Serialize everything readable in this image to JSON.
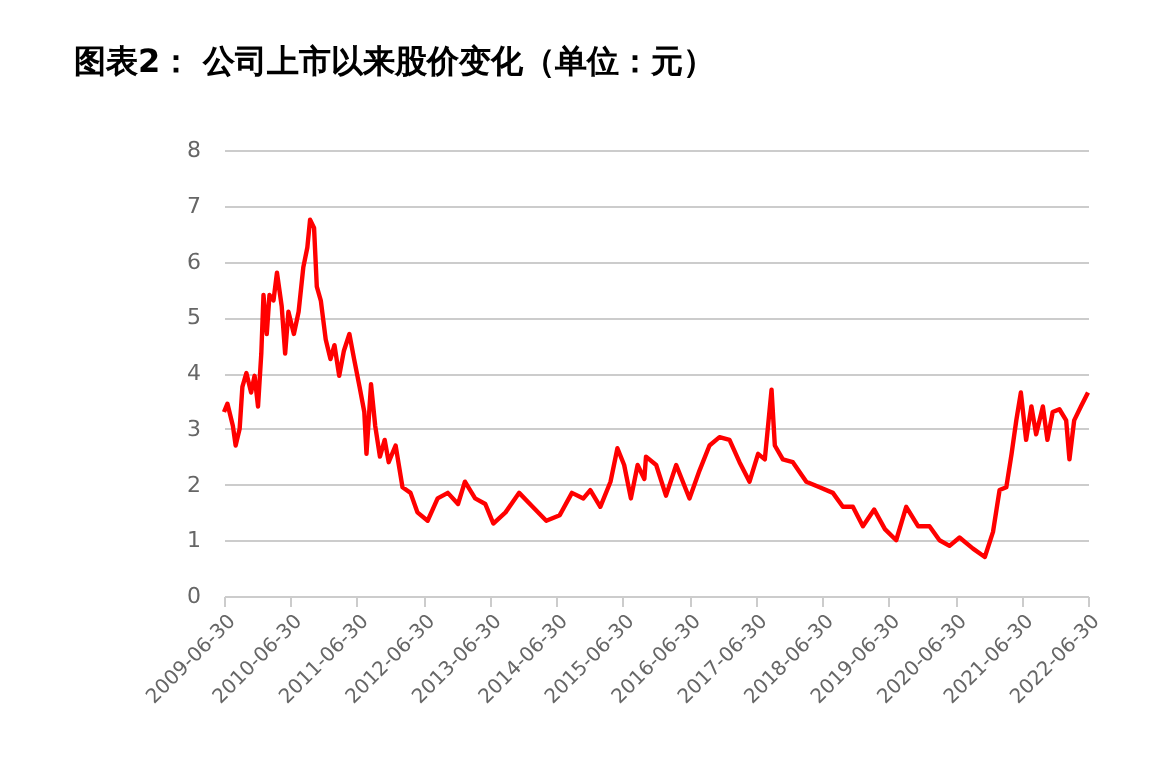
{
  "chart_data": {
    "type": "line",
    "title": "图表2：  公司上市以来股价变化（单位：元）",
    "x": [
      "2009-06-30",
      "2009-07-19",
      "2009-08-18",
      "2009-09-02",
      "2009-09-24",
      "2009-10-09",
      "2009-10-31",
      "2009-11-26",
      "2009-12-15",
      "2010-01-03",
      "2010-01-21",
      "2010-02-02",
      "2010-02-20",
      "2010-03-07",
      "2010-03-29",
      "2010-04-17",
      "2010-05-13",
      "2010-06-01",
      "2010-06-19",
      "2010-07-19",
      "2010-08-14",
      "2010-09-09",
      "2010-10-01",
      "2010-10-16",
      "2010-11-07",
      "2010-11-22",
      "2010-12-14",
      "2011-01-10",
      "2011-02-05",
      "2011-02-27",
      "2011-03-25",
      "2011-04-20",
      "2011-05-20",
      "2011-06-15",
      "2011-07-15",
      "2011-08-10",
      "2011-08-22",
      "2011-09-16",
      "2011-10-09",
      "2011-11-04",
      "2011-11-30",
      "2011-12-22",
      "2012-01-29",
      "2012-03-07",
      "2012-04-20",
      "2012-05-28",
      "2012-07-23",
      "2012-09-16",
      "2012-11-11",
      "2013-01-06",
      "2013-02-13",
      "2013-04-10",
      "2013-06-05",
      "2013-07-19",
      "2013-09-24",
      "2013-12-08",
      "2014-02-20",
      "2014-05-06",
      "2014-07-19",
      "2014-09-24",
      "2014-11-26",
      "2015-01-03",
      "2015-02-27",
      "2015-04-24",
      "2015-06-01",
      "2015-07-08",
      "2015-08-14",
      "2015-09-20",
      "2015-10-27",
      "2015-11-05",
      "2015-12-31",
      "2016-02-23",
      "2016-04-19",
      "2016-07-01",
      "2016-08-25",
      "2016-10-19",
      "2016-12-13",
      "2017-02-06",
      "2017-04-02",
      "2017-05-27",
      "2017-07-13",
      "2017-08-19",
      "2017-09-25",
      "2017-10-13",
      "2017-11-26",
      "2018-01-20",
      "2018-04-04",
      "2018-06-16",
      "2018-08-28",
      "2018-10-22",
      "2018-12-16",
      "2019-02-09",
      "2019-04-12",
      "2019-06-10",
      "2019-08-11",
      "2019-10-05",
      "2019-12-10",
      "2020-02-10",
      "2020-04-05",
      "2020-05-30",
      "2020-07-24",
      "2020-10-06",
      "2020-12-10",
      "2021-01-24",
      "2021-03-01",
      "2021-04-07",
      "2021-05-06",
      "2021-06-01",
      "2021-06-26",
      "2021-07-25",
      "2021-08-23",
      "2021-09-18",
      "2021-10-25",
      "2021-11-19",
      "2021-12-18",
      "2022-01-24",
      "2022-03-02",
      "2022-03-20",
      "2022-04-15",
      "2022-05-22",
      "2022-06-30"
    ],
    "series": [
      {
        "color": "#ff0000",
        "values": [
          3.3,
          3.45,
          3.05,
          2.7,
          3.0,
          3.75,
          4.0,
          3.65,
          3.95,
          3.4,
          4.35,
          5.4,
          4.7,
          5.4,
          5.3,
          5.8,
          5.2,
          4.35,
          5.1,
          4.7,
          5.1,
          5.9,
          6.25,
          6.75,
          6.6,
          5.55,
          5.3,
          4.6,
          4.25,
          4.5,
          3.95,
          4.4,
          4.7,
          4.25,
          3.75,
          3.3,
          2.55,
          3.8,
          3.05,
          2.5,
          2.8,
          2.4,
          2.7,
          1.95,
          1.85,
          1.5,
          1.35,
          1.75,
          1.85,
          1.65,
          2.05,
          1.75,
          1.65,
          1.3,
          1.5,
          1.85,
          1.6,
          1.35,
          1.45,
          1.85,
          1.75,
          1.9,
          1.6,
          2.05,
          2.65,
          2.35,
          1.75,
          2.35,
          2.1,
          2.5,
          2.35,
          1.8,
          2.35,
          1.75,
          2.25,
          2.7,
          2.85,
          2.8,
          2.4,
          2.05,
          2.55,
          2.45,
          3.7,
          2.7,
          2.45,
          2.4,
          2.05,
          1.95,
          1.85,
          1.6,
          1.6,
          1.25,
          1.55,
          1.2,
          1.0,
          1.6,
          1.25,
          1.25,
          1.0,
          0.9,
          1.05,
          0.85,
          0.7,
          1.15,
          1.9,
          1.95,
          2.55,
          3.15,
          3.65,
          2.8,
          3.4,
          2.9,
          3.4,
          2.8,
          3.3,
          3.35,
          3.15,
          2.45,
          3.15,
          3.4,
          3.65
        ]
      }
    ],
    "xlim": [
      "2009-06-30",
      "2022-06-30"
    ],
    "xticks": [
      "2009-06-30",
      "2010-06-30",
      "2011-06-30",
      "2012-06-30",
      "2013-06-30",
      "2014-06-30",
      "2015-06-30",
      "2016-06-30",
      "2017-06-30",
      "2018-06-30",
      "2019-06-30",
      "2020-06-30",
      "2021-06-30",
      "2022-06-30"
    ],
    "ylim": [
      0,
      8
    ],
    "yticks": [
      0,
      1,
      2,
      3,
      4,
      5,
      6,
      7,
      8
    ],
    "grid": "y",
    "legend": false,
    "marker": "none",
    "line_style": "solid"
  }
}
